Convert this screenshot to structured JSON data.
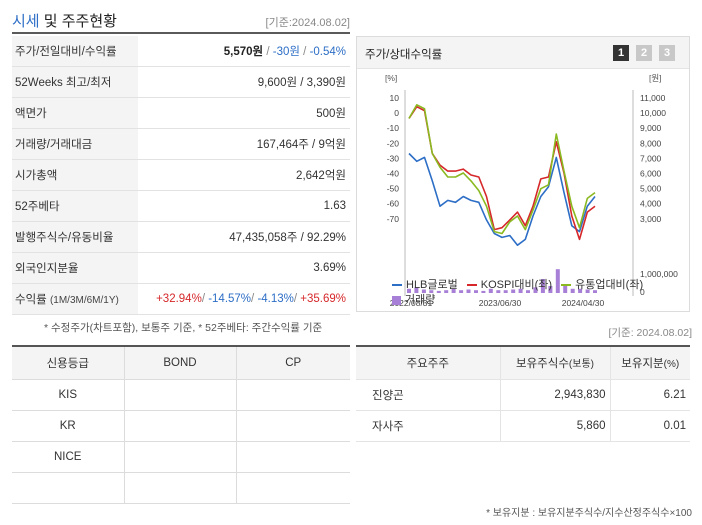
{
  "header": {
    "title_highlight": "시세",
    "title_rest": " 및 주주현황",
    "basis": "[기준:2024.08.02]"
  },
  "price_rows": {
    "price": {
      "label": "주가/전일대비/수익률",
      "value": "5,570원",
      "change": "-30원",
      "rate": "-0.54%"
    },
    "week52": {
      "label": "52Weeks 최고/최저",
      "value": "9,600원 / 3,390원"
    },
    "par": {
      "label": "액면가",
      "value": "500원"
    },
    "volume": {
      "label": "거래량/거래대금",
      "value": "167,464주 / 9억원"
    },
    "mcap": {
      "label": "시가총액",
      "value": "2,642억원"
    },
    "beta": {
      "label": "52주베타",
      "value": "1.63"
    },
    "shares": {
      "label": "발행주식수/유동비율",
      "value": "47,435,058주 / 92.29%"
    },
    "foreign": {
      "label": "외국인지분율",
      "value": "3.69%"
    },
    "returns": {
      "label": "수익률",
      "label_sub": "(1M/3M/6M/1Y)",
      "r1m": "+32.94%",
      "r3m": "-14.57%",
      "r6m": "-4.13%",
      "r1y": "+35.69%",
      "sep": "/ "
    }
  },
  "footnote1": "* 수정주가(차트포함), 보통주 기준, * 52주베타: 주간수익률 기준",
  "basis2": "[기준: 2024.08.02]",
  "chart_panel": {
    "title": "주가/상대수익률",
    "pages": [
      "1",
      "2",
      "3"
    ]
  },
  "chart_data": {
    "type": "line",
    "left_unit": "[%]",
    "right_unit": "[원]",
    "left_ticks": [
      "10",
      "0",
      "-10",
      "-20",
      "-30",
      "-40",
      "-50",
      "-60",
      "-70"
    ],
    "right_ticks": [
      "11,000",
      "10,000",
      "9,000",
      "8,000",
      "7,000",
      "6,000",
      "5,000",
      "4,000",
      "3,000"
    ],
    "volume_ticks": [
      "1,000,000",
      "0"
    ],
    "x_labels": [
      "2022/08/31",
      "2023/06/30",
      "2024/04/30"
    ],
    "ylim_pct": [
      -70,
      12
    ],
    "series": [
      {
        "name": "HLB글로벌",
        "color": "#2d6ec6",
        "values": [
          -18,
          -22,
          -20,
          -32,
          -45,
          -42,
          -43,
          -40,
          -42,
          -43,
          -52,
          -59,
          -61,
          -60,
          -65,
          -62,
          -50,
          -40,
          -35,
          -20,
          -38,
          -55,
          -58,
          -45,
          -40
        ]
      },
      {
        "name": "KOSPI대비(좌)",
        "color": "#d6282b",
        "values": [
          0,
          6,
          4,
          -18,
          -24,
          -27,
          -27,
          -26,
          -29,
          -30,
          -40,
          -57,
          -56,
          -52,
          -48,
          -55,
          -45,
          -31,
          -30,
          -12,
          -28,
          -50,
          -62,
          -48,
          -45
        ]
      },
      {
        "name": "유통업대비(좌)",
        "color": "#8ab920",
        "values": [
          0,
          7,
          5,
          -18,
          -25,
          -30,
          -30,
          -28,
          -32,
          -37,
          -45,
          -58,
          -59,
          -53,
          -50,
          -57,
          -47,
          -36,
          -34,
          -8,
          -27,
          -45,
          -56,
          -41,
          -38
        ]
      }
    ],
    "volume": {
      "name": "거래량",
      "color": "#a77fd6",
      "values": [
        0.3,
        0.4,
        0.25,
        0.2,
        0.15,
        0.2,
        0.3,
        0.2,
        0.25,
        0.2,
        0.15,
        0.3,
        0.2,
        0.2,
        0.25,
        0.3,
        0.2,
        0.4,
        1.0,
        0.5,
        1.7,
        0.5,
        0.3,
        0.3,
        0.25,
        0.2
      ],
      "ylim": [
        0,
        2.0
      ]
    }
  },
  "credit": {
    "headers": [
      "신용등급",
      "BOND",
      "CP"
    ],
    "rows": [
      [
        "KIS",
        "",
        ""
      ],
      [
        "KR",
        "",
        ""
      ],
      [
        "NICE",
        "",
        ""
      ],
      [
        "",
        "",
        ""
      ]
    ]
  },
  "holders": {
    "headers": [
      "주요주주",
      "보유주식수",
      "(보통)",
      "보유지분",
      "(%)"
    ],
    "rows": [
      {
        "name": "진양곤",
        "shares": "2,943,830",
        "pct": "6.21"
      },
      {
        "name": "자사주",
        "shares": "5,860",
        "pct": "0.01"
      }
    ]
  },
  "footnote2": "* 보유지분 : 보유지분주식수/지수산정주식수×100"
}
